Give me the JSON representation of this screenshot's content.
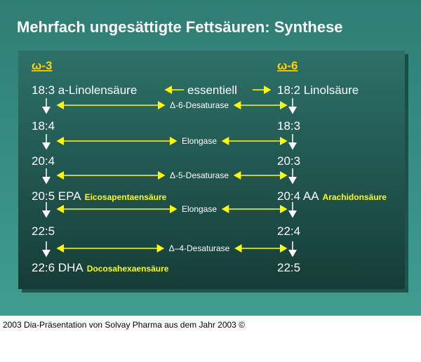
{
  "title": "Mehrfach ungesättigte Fettsäuren: Synthese",
  "headers": {
    "left": "ω-3",
    "right": "ω-6"
  },
  "essential": "essentiell",
  "rows": [
    {
      "left": "18:3 a-Linolensäure",
      "right": "18:2 Linolsäure"
    },
    {
      "left": "18:4",
      "right": "18:3"
    },
    {
      "left": "20:4",
      "right": "20:3"
    },
    {
      "left": "20:5 EPA",
      "left_note": "Eicosapentaensäure",
      "right": "20:4 AA",
      "right_note": "Arachidonsäure"
    },
    {
      "left": "22:5",
      "right": "22:4"
    },
    {
      "left": "22:6 DHA",
      "left_note": "Docosahexaensäure",
      "right": "22:5"
    }
  ],
  "enzymes": [
    "Δ-6-Desaturase",
    "Elongase",
    "Δ-5-Desaturase",
    "Elongase",
    "Δ–4-Desaturase"
  ],
  "caption": "2003 Dia-Präsentation von Solvay Pharma aus dem Jahr 2003 ©"
}
